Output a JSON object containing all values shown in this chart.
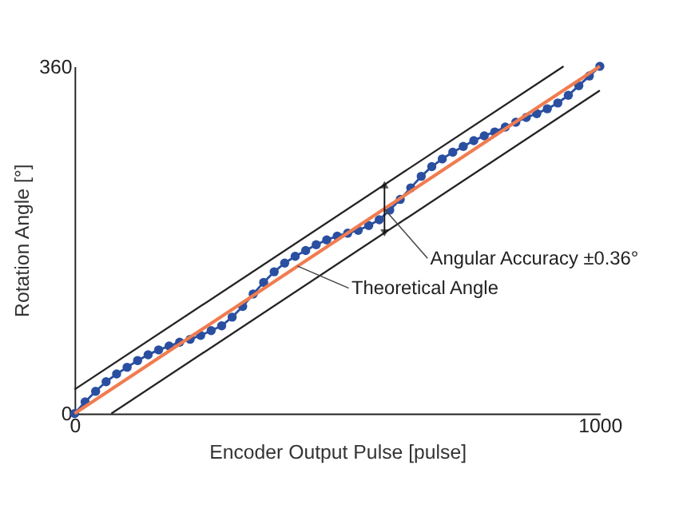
{
  "chart_data": {
    "type": "line",
    "xlabel": "Encoder Output Pulse [pulse]",
    "ylabel": "Rotation Angle [°]",
    "xlim": [
      0,
      1000
    ],
    "ylim": [
      0,
      360
    ],
    "xticks": [
      0,
      1000
    ],
    "yticks": [
      0,
      360
    ],
    "grid": false,
    "series": [
      {
        "color": "#222222",
        "x": [
          0,
          931
        ],
        "values": [
          25,
          360
        ],
        "marker": "none"
      },
      {
        "color": "#222222",
        "x": [
          70,
          1000
        ],
        "values": [
          0,
          335
        ],
        "marker": "none"
      },
      {
        "color": "#2a4fa0",
        "marker": "circle",
        "x": [
          0,
          20,
          40,
          60,
          80,
          100,
          120,
          140,
          160,
          180,
          200,
          220,
          240,
          260,
          280,
          300,
          320,
          340,
          360,
          380,
          400,
          420,
          440,
          460,
          480,
          500,
          520,
          540,
          560,
          580,
          600,
          620,
          640,
          660,
          680,
          700,
          720,
          740,
          760,
          780,
          800,
          820,
          840,
          860,
          880,
          900,
          920,
          940,
          960,
          980,
          1000
        ],
        "values": [
          0,
          12,
          23,
          33,
          41,
          48,
          55,
          61,
          66,
          70,
          74,
          77,
          81,
          86,
          91,
          100,
          111,
          124,
          136,
          147,
          156,
          163,
          169,
          175,
          180,
          184,
          187,
          190,
          195,
          201,
          211,
          222,
          234,
          246,
          256,
          264,
          271,
          277,
          283,
          288,
          292,
          297,
          302,
          307,
          311,
          316,
          322,
          330,
          340,
          350,
          360
        ]
      },
      {
        "color": "#f07c50",
        "marker": "none",
        "x": [
          0,
          1000
        ],
        "values": [
          0,
          360
        ]
      }
    ],
    "annotations": [
      {
        "text": "Angular Accuracy ±0.36°",
        "x": 590,
        "y": 212
      },
      {
        "text": "Theoretical Angle",
        "x": 424,
        "y": 153
      }
    ]
  }
}
